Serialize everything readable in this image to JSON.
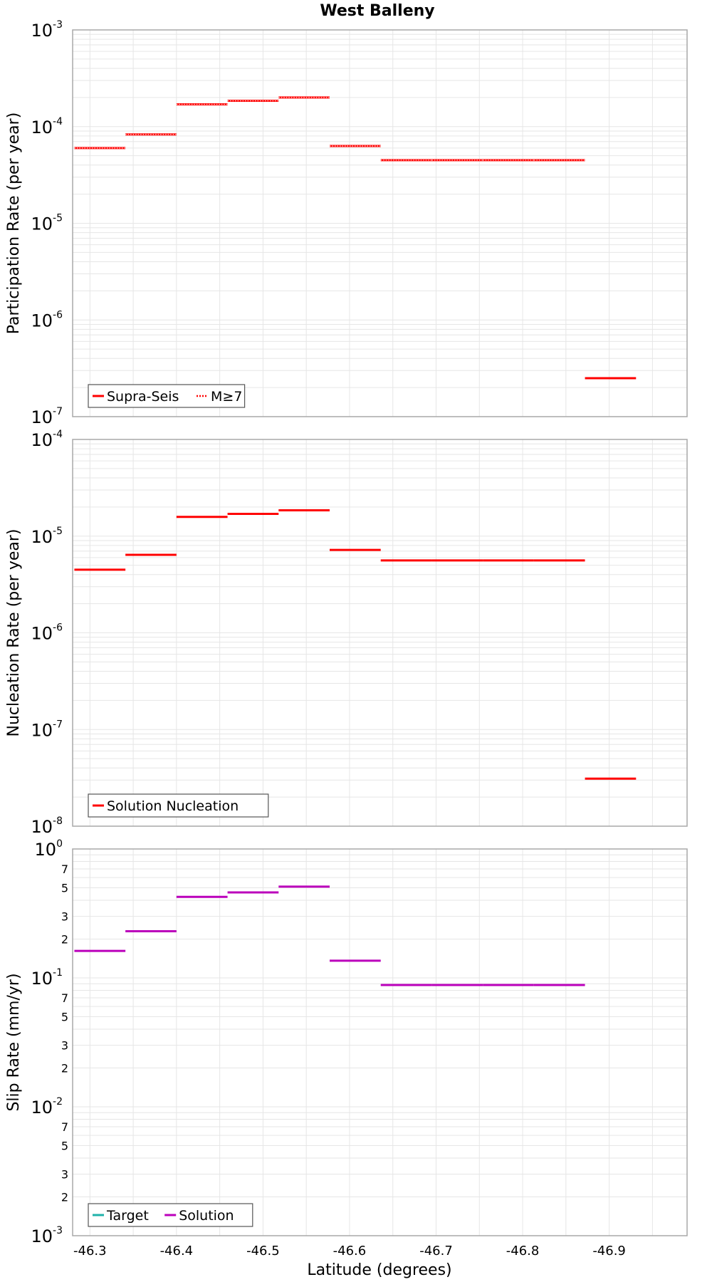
{
  "title": "West Balleny",
  "xlabel": "Latitude (degrees)",
  "x_ticks": [
    -46.3,
    -46.4,
    -46.5,
    -46.6,
    -46.7,
    -46.8,
    -46.9
  ],
  "x_tick_labels": [
    "-46.3",
    "-46.4",
    "-46.5",
    "-46.6",
    "-46.7",
    "-46.8",
    "-46.9"
  ],
  "colors": {
    "red": "#ff0000",
    "magenta": "#bb00bb",
    "teal": "#20b2aa",
    "frame": "#a8a8a8",
    "grid": "#e6e6e6"
  },
  "chart_data": [
    {
      "type": "line",
      "name": "participation",
      "ylabel": "Participation Rate (per year)",
      "yscale": "log",
      "ylim": [
        1e-07,
        0.001
      ],
      "xlim": [
        -46.28,
        -46.99
      ],
      "y_ticks": [
        {
          "base": "10",
          "exp": "-3"
        },
        {
          "base": "10",
          "exp": "-4"
        },
        {
          "base": "10",
          "exp": "-5"
        },
        {
          "base": "10",
          "exp": "-6"
        },
        {
          "base": "10",
          "exp": "-7"
        }
      ],
      "legend": {
        "position": "bottom-left",
        "entries": [
          {
            "label": "Supra-Seis",
            "style": "solid",
            "color": "#ff0000"
          },
          {
            "label": "M≥7",
            "style": "dotted",
            "color": "#ff0000"
          }
        ]
      },
      "series": [
        {
          "name": "Supra-Seis",
          "style": "solid",
          "color": "#ff0000",
          "segments": [
            {
              "x0": -46.282,
              "x1": -46.341,
              "y": 6e-05
            },
            {
              "x0": -46.341,
              "x1": -46.4,
              "y": 8.3e-05
            },
            {
              "x0": -46.4,
              "x1": -46.459,
              "y": 0.00017
            },
            {
              "x0": -46.459,
              "x1": -46.518,
              "y": 0.000185
            },
            {
              "x0": -46.518,
              "x1": -46.577,
              "y": 0.0002
            },
            {
              "x0": -46.577,
              "x1": -46.636,
              "y": 6.3e-05
            },
            {
              "x0": -46.636,
              "x1": -46.695,
              "y": 4.5e-05
            },
            {
              "x0": -46.695,
              "x1": -46.754,
              "y": 4.5e-05
            },
            {
              "x0": -46.754,
              "x1": -46.813,
              "y": 4.5e-05
            },
            {
              "x0": -46.813,
              "x1": -46.872,
              "y": 4.5e-05
            },
            {
              "x0": -46.872,
              "x1": -46.931,
              "y": 2.5e-07
            }
          ]
        },
        {
          "name": "M≥7",
          "style": "dotted",
          "color": "#ff0000",
          "segments": [
            {
              "x0": -46.282,
              "x1": -46.341,
              "y": 6e-05
            },
            {
              "x0": -46.341,
              "x1": -46.4,
              "y": 8.3e-05
            },
            {
              "x0": -46.4,
              "x1": -46.459,
              "y": 0.00017
            },
            {
              "x0": -46.459,
              "x1": -46.518,
              "y": 0.000185
            },
            {
              "x0": -46.518,
              "x1": -46.577,
              "y": 0.0002
            },
            {
              "x0": -46.577,
              "x1": -46.636,
              "y": 6.3e-05
            },
            {
              "x0": -46.636,
              "x1": -46.695,
              "y": 4.5e-05
            },
            {
              "x0": -46.695,
              "x1": -46.754,
              "y": 4.5e-05
            },
            {
              "x0": -46.754,
              "x1": -46.813,
              "y": 4.5e-05
            },
            {
              "x0": -46.813,
              "x1": -46.872,
              "y": 4.5e-05
            }
          ]
        }
      ]
    },
    {
      "type": "line",
      "name": "nucleation",
      "ylabel": "Nucleation Rate (per year)",
      "yscale": "log",
      "ylim": [
        1e-08,
        0.0001
      ],
      "xlim": [
        -46.28,
        -46.99
      ],
      "y_ticks": [
        {
          "base": "10",
          "exp": "-4"
        },
        {
          "base": "10",
          "exp": "-5"
        },
        {
          "base": "10",
          "exp": "-6"
        },
        {
          "base": "10",
          "exp": "-7"
        },
        {
          "base": "10",
          "exp": "-8"
        }
      ],
      "legend": {
        "position": "bottom-left",
        "entries": [
          {
            "label": "Solution Nucleation",
            "style": "solid",
            "color": "#ff0000"
          }
        ]
      },
      "series": [
        {
          "name": "Solution Nucleation",
          "style": "solid",
          "color": "#ff0000",
          "segments": [
            {
              "x0": -46.282,
              "x1": -46.341,
              "y": 4.5e-06
            },
            {
              "x0": -46.341,
              "x1": -46.4,
              "y": 6.4e-06
            },
            {
              "x0": -46.4,
              "x1": -46.459,
              "y": 1.58e-05
            },
            {
              "x0": -46.459,
              "x1": -46.518,
              "y": 1.7e-05
            },
            {
              "x0": -46.518,
              "x1": -46.577,
              "y": 1.85e-05
            },
            {
              "x0": -46.577,
              "x1": -46.636,
              "y": 7.2e-06
            },
            {
              "x0": -46.636,
              "x1": -46.695,
              "y": 5.6e-06
            },
            {
              "x0": -46.695,
              "x1": -46.754,
              "y": 5.6e-06
            },
            {
              "x0": -46.754,
              "x1": -46.813,
              "y": 5.6e-06
            },
            {
              "x0": -46.813,
              "x1": -46.872,
              "y": 5.6e-06
            },
            {
              "x0": -46.872,
              "x1": -46.931,
              "y": 3.1e-08
            }
          ]
        }
      ]
    },
    {
      "type": "line",
      "name": "slip",
      "ylabel": "Slip Rate (mm/yr)",
      "yscale": "log",
      "ylim": [
        0.001,
        1
      ],
      "xlim": [
        -46.28,
        -46.99
      ],
      "y_ticks": [
        {
          "base": "10",
          "exp": "0"
        },
        {
          "base": "10",
          "exp": "-1"
        },
        {
          "base": "10",
          "exp": "-2"
        },
        {
          "base": "10",
          "exp": "-3"
        }
      ],
      "y_minor_ticks": [
        {
          "label": "7",
          "value": 0.7
        },
        {
          "label": "5",
          "value": 0.5
        },
        {
          "label": "3",
          "value": 0.3
        },
        {
          "label": "2",
          "value": 0.2
        },
        {
          "label": "7",
          "value": 0.07
        },
        {
          "label": "5",
          "value": 0.05
        },
        {
          "label": "3",
          "value": 0.03
        },
        {
          "label": "2",
          "value": 0.02
        },
        {
          "label": "7",
          "value": 0.007
        },
        {
          "label": "5",
          "value": 0.005
        },
        {
          "label": "3",
          "value": 0.003
        },
        {
          "label": "2",
          "value": 0.002
        }
      ],
      "legend": {
        "position": "bottom-left",
        "entries": [
          {
            "label": "Target",
            "style": "solid",
            "color": "#20b2aa"
          },
          {
            "label": "Solution",
            "style": "solid",
            "color": "#bb00bb"
          }
        ]
      },
      "series": [
        {
          "name": "Solution",
          "style": "solid",
          "color": "#bb00bb",
          "segments": [
            {
              "x0": -46.282,
              "x1": -46.341,
              "y": 0.162
            },
            {
              "x0": -46.341,
              "x1": -46.4,
              "y": 0.23
            },
            {
              "x0": -46.4,
              "x1": -46.459,
              "y": 0.425
            },
            {
              "x0": -46.459,
              "x1": -46.518,
              "y": 0.46
            },
            {
              "x0": -46.518,
              "x1": -46.577,
              "y": 0.51
            },
            {
              "x0": -46.577,
              "x1": -46.636,
              "y": 0.136
            },
            {
              "x0": -46.636,
              "x1": -46.695,
              "y": 0.088
            },
            {
              "x0": -46.695,
              "x1": -46.754,
              "y": 0.088
            },
            {
              "x0": -46.754,
              "x1": -46.813,
              "y": 0.088
            },
            {
              "x0": -46.813,
              "x1": -46.872,
              "y": 0.088
            }
          ]
        }
      ]
    }
  ]
}
